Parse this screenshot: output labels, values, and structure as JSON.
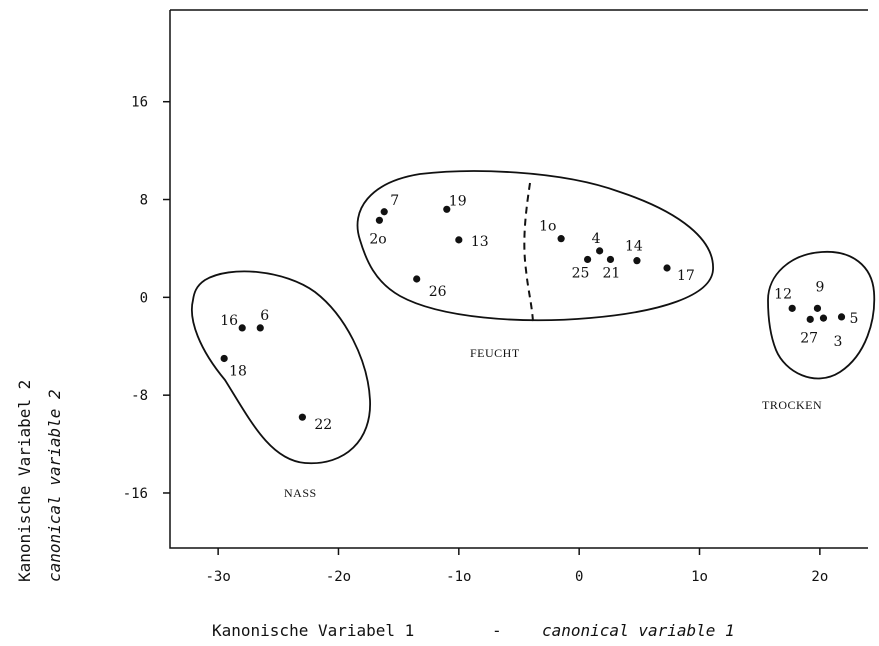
{
  "chart_data": {
    "type": "scatter",
    "xlabel": "Kanonische Variabel 1",
    "xlabel_separator": "-",
    "xlabel_en": "canonical variable 1",
    "ylabel": "Kanonische Variabel 2",
    "ylabel_en": "canonical variable 2",
    "xlim": [
      -34,
      24
    ],
    "ylim": [
      -20.5,
      23.5
    ],
    "x_ticks": [
      -30,
      -20,
      -10,
      0,
      10,
      20
    ],
    "x_tick_labels": [
      "-3o",
      "-2o",
      "-1o",
      "0",
      "1o",
      "2o"
    ],
    "y_ticks": [
      16,
      8,
      0,
      -8,
      -16
    ],
    "y_tick_labels": [
      "16",
      "8",
      "0",
      "-8",
      "-16"
    ],
    "grid": false,
    "groups": [
      {
        "name": "NASS",
        "points": [
          "16",
          "6",
          "18",
          "22"
        ]
      },
      {
        "name": "FEUCHT",
        "points": [
          "7",
          "2o",
          "19",
          "13",
          "26",
          "1o",
          "4",
          "14",
          "25",
          "21",
          "17"
        ]
      },
      {
        "name": "TROCKEN",
        "points": [
          "12",
          "9",
          "27",
          "3",
          "5"
        ]
      }
    ],
    "points": [
      {
        "label": "16",
        "x": -28,
        "y": -2.5
      },
      {
        "label": "6",
        "x": -26.5,
        "y": -2.5
      },
      {
        "label": "18",
        "x": -29.5,
        "y": -5
      },
      {
        "label": "22",
        "x": -23,
        "y": -9.8
      },
      {
        "label": "7",
        "x": -16.2,
        "y": 7
      },
      {
        "label": "2o",
        "x": -16.6,
        "y": 6.3
      },
      {
        "label": "19",
        "x": -11,
        "y": 7.2
      },
      {
        "label": "13",
        "x": -10,
        "y": 4.7
      },
      {
        "label": "26",
        "x": -13.5,
        "y": 1.5
      },
      {
        "label": "1o",
        "x": -1.5,
        "y": 4.8
      },
      {
        "label": "4",
        "x": 1.7,
        "y": 3.8
      },
      {
        "label": "14",
        "x": 4.8,
        "y": 3
      },
      {
        "label": "25",
        "x": 0.7,
        "y": 3.1
      },
      {
        "label": "21",
        "x": 2.6,
        "y": 3.1
      },
      {
        "label": "17",
        "x": 7.3,
        "y": 2.4
      },
      {
        "label": "12",
        "x": 17.7,
        "y": -0.9
      },
      {
        "label": "9",
        "x": 19.8,
        "y": -0.9
      },
      {
        "label": "27",
        "x": 19.2,
        "y": -1.8
      },
      {
        "label": "3",
        "x": 20.3,
        "y": -1.7
      },
      {
        "label": "5",
        "x": 21.8,
        "y": -1.6
      }
    ]
  }
}
